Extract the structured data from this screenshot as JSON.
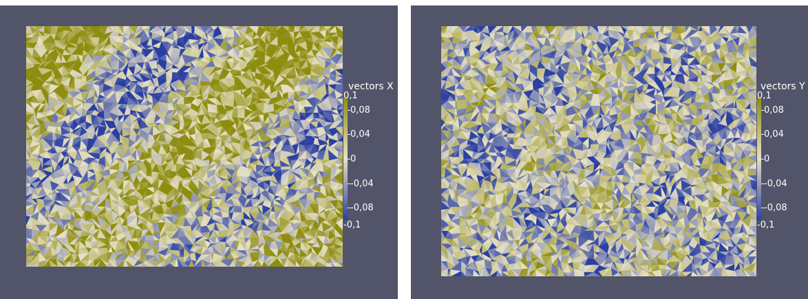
{
  "views": [
    {
      "colorbar": {
        "title": "vectors X",
        "ticks": [
          {
            "label": "0,1",
            "value": 0.1
          },
          {
            "label": "0,08",
            "value": 0.08
          },
          {
            "label": "0,04",
            "value": 0.04
          },
          {
            "label": "0",
            "value": 0
          },
          {
            "label": "-0,04",
            "value": -0.04
          },
          {
            "label": "-0,08",
            "value": -0.08
          },
          {
            "label": "-0,1",
            "value": -0.1
          }
        ],
        "range": [
          -0.1,
          0.1
        ]
      },
      "field_component": "x",
      "dominant_colors": [
        "#8f8f12",
        "#c6c25a",
        "#e3dcc0",
        "#a5c1dc",
        "#2c44a6"
      ]
    },
    {
      "colorbar": {
        "title": "vectors Y",
        "ticks": [
          {
            "label": "0,1",
            "value": 0.1
          },
          {
            "label": "0,08",
            "value": 0.08
          },
          {
            "label": "0,04",
            "value": 0.04
          },
          {
            "label": "0",
            "value": 0
          },
          {
            "label": "-0,04",
            "value": -0.04
          },
          {
            "label": "-0,08",
            "value": -0.08
          },
          {
            "label": "-0,1",
            "value": -0.1
          }
        ],
        "range": [
          -0.1,
          0.1
        ]
      },
      "field_component": "y",
      "dominant_colors": [
        "#2c44a6",
        "#a5c1dc",
        "#e3dcc0",
        "#c6c25a",
        "#8f8f12"
      ]
    }
  ],
  "colormap": {
    "low": "#2a3fa3",
    "mid": "#e6e0c6",
    "high": "#8e8d0f"
  },
  "background_color": "#525469"
}
